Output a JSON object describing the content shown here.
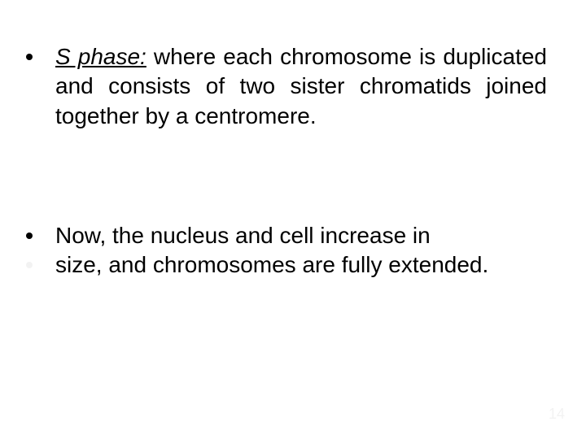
{
  "slide": {
    "background_color": "#ffffff",
    "text_color": "#000000",
    "font_family": "Arial",
    "body_fontsize_pt": 21,
    "bullets": [
      {
        "lead": "S phase:",
        "rest": " where each chromosome is duplicated and consists of two sister chromatids joined together by a centromere.",
        "justify": true,
        "dot_color": "#000000"
      },
      {
        "line1": "Now, the nucleus and cell increase in",
        "line2": "size, and chromosomes are fully extended.",
        "dot_color_line1": "#000000",
        "dot_color_line2": "rgba(0,0,0,0.05)"
      }
    ],
    "page_number": "14",
    "page_number_color": "rgba(0,0,0,0.05)"
  }
}
